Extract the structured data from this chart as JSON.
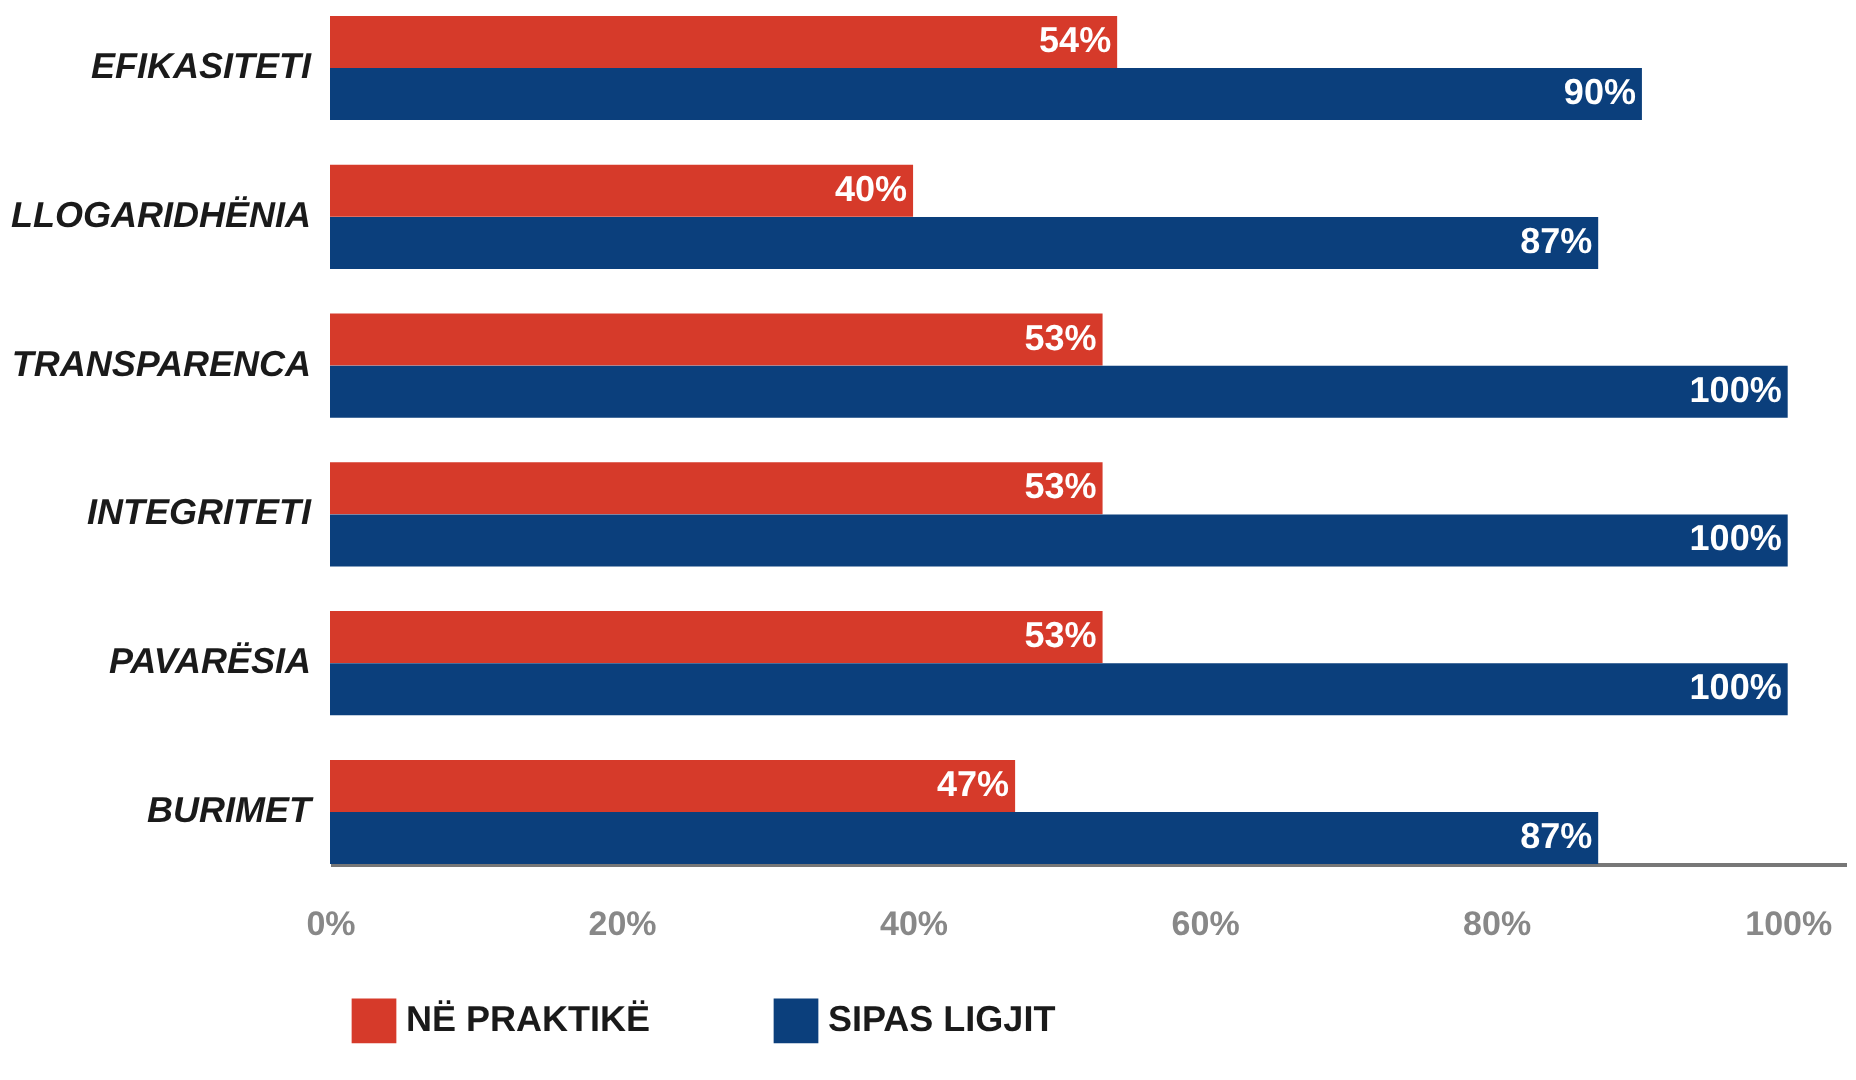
{
  "chart_data": {
    "type": "bar",
    "orientation": "horizontal",
    "categories": [
      "EFIKASITETI",
      "LLOGARIDHËNIA",
      "TRANSPARENCA",
      "INTEGRITETI",
      "PAVARËSIA",
      "BURIMET"
    ],
    "series": [
      {
        "name": "NË PRAKTIKË",
        "color": "#d63a2a",
        "values": [
          54,
          40,
          53,
          53,
          53,
          47
        ],
        "value_labels": [
          "54%",
          "40%",
          "53%",
          "53%",
          "53%",
          "47%"
        ]
      },
      {
        "name": "SIPAS LIGJIT",
        "color": "#0b3f7c",
        "values": [
          90,
          87,
          100,
          100,
          100,
          87
        ],
        "value_labels": [
          "90%",
          "87%",
          "100%",
          "100%",
          "100%",
          "87%"
        ]
      }
    ],
    "xlim": [
      0,
      104
    ],
    "xticks": [
      {
        "value": 0,
        "label": "0%"
      },
      {
        "value": 20,
        "label": "20%"
      },
      {
        "value": 40,
        "label": "40%"
      },
      {
        "value": 60,
        "label": "60%"
      },
      {
        "value": 80,
        "label": "80%"
      },
      {
        "value": 100,
        "label": "100%"
      }
    ],
    "grid": false,
    "legend": "bottom"
  }
}
